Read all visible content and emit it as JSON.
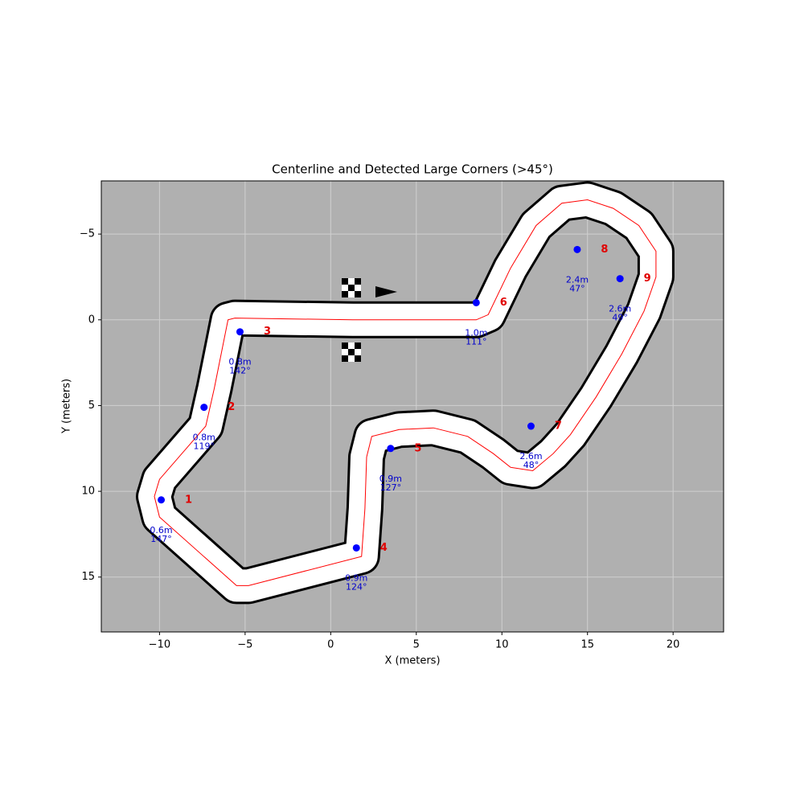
{
  "chart_data": {
    "type": "track",
    "title": "Centerline and Detected Large Corners (>45°)",
    "x_label": "X (meters)",
    "y_label": "Y (meters)",
    "xlim": [
      -13.4,
      22.95
    ],
    "ylim": [
      -8.1,
      18.2
    ],
    "y_inverted": true,
    "xticks": [
      {
        "value": -10,
        "label": "−10"
      },
      {
        "value": -5,
        "label": "−5"
      },
      0,
      5,
      10,
      15,
      20
    ],
    "yticks": [
      {
        "value": -5,
        "label": "−5"
      },
      0,
      5,
      10,
      15
    ],
    "grid": true,
    "background": "#b0b0b0",
    "track": {
      "color": "#ff0000",
      "x": [
        1.3,
        8.5,
        9.2,
        10.5,
        12,
        13.5,
        15,
        16.5,
        18,
        19,
        19,
        18.3,
        17,
        15.5,
        14,
        13,
        11.8,
        10.5,
        9.5,
        8,
        6,
        4,
        2.4,
        2.1,
        2,
        1.8,
        -4.8,
        -5.5,
        -10,
        -10.3,
        -10,
        -7.3,
        -6.8,
        -6,
        -5.6
      ],
      "y": [
        0,
        0,
        -0.3,
        -3,
        -5.5,
        -6.8,
        -7,
        -6.5,
        -5.5,
        -4,
        -2.5,
        -0.5,
        2,
        4.5,
        6.7,
        7.8,
        8.8,
        8.6,
        7.8,
        6.8,
        6.3,
        6.4,
        6.8,
        8,
        11,
        13.8,
        15.5,
        15.5,
        11.5,
        10.3,
        9.3,
        6.2,
        4,
        0,
        -0.1
      ]
    },
    "corners": {
      "color": "#0000ff",
      "label_color": "#e00000",
      "x": [
        -9.9,
        -7.4,
        -5.3,
        1.5,
        3.5,
        8.5,
        11.7,
        14.4,
        16.9
      ],
      "y": [
        10.5,
        5.1,
        0.7,
        13.3,
        7.5,
        -1,
        6.2,
        -4.1,
        -2.4
      ],
      "labels": [
        "1",
        "2",
        "3",
        "4",
        "5",
        "6",
        "7",
        "8",
        "9"
      ],
      "distances": [
        "0.6m",
        "0.8m",
        "0.8m",
        "0.9m",
        "0.9m",
        "1.0m",
        "2.6m",
        "2.4m",
        "2.6m"
      ],
      "angles": [
        "147°",
        "119°",
        "142°",
        "124°",
        "127°",
        "111°",
        "48°",
        "47°",
        "49°"
      ]
    }
  }
}
